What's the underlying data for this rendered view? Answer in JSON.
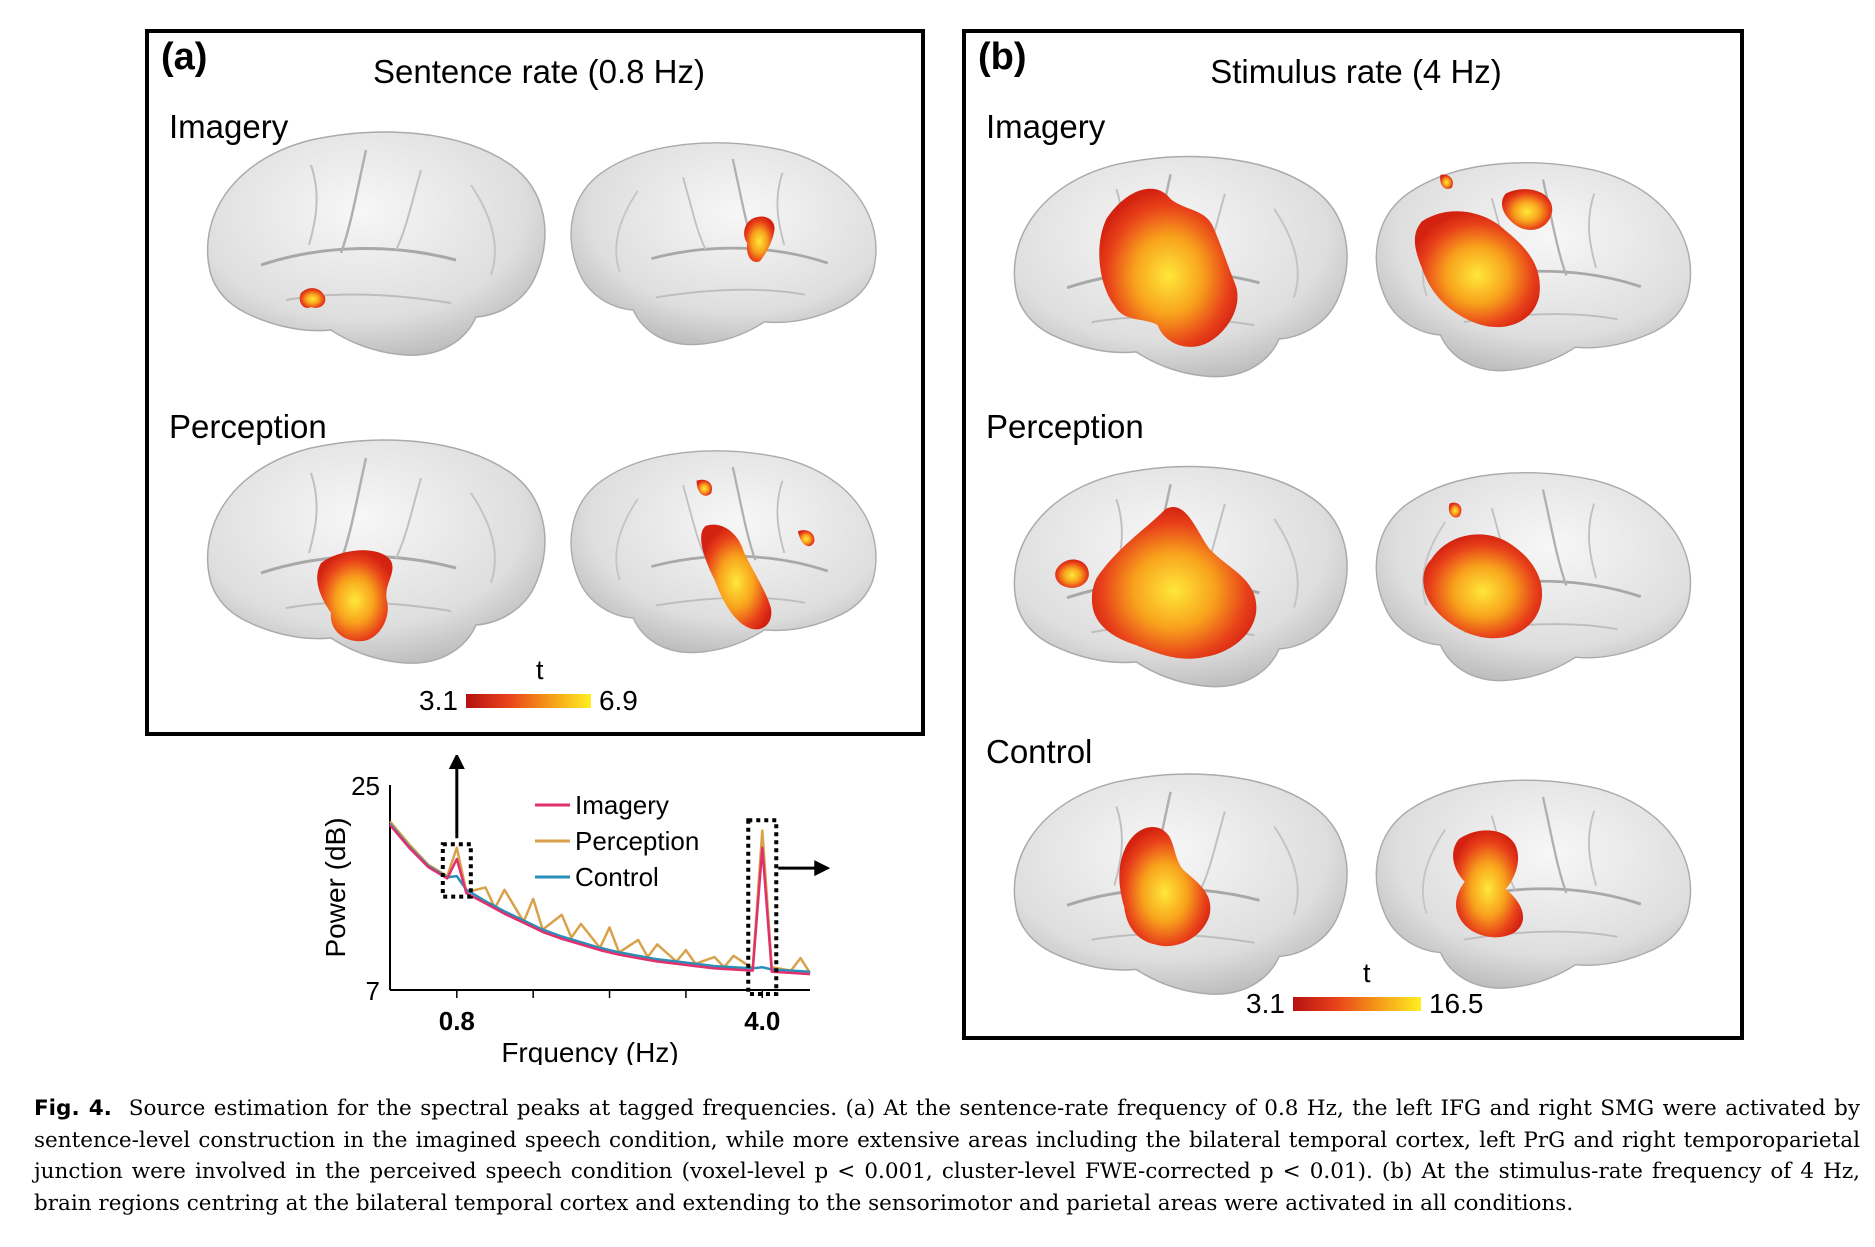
{
  "panel_a": {
    "label": "(a)",
    "title": "Sentence rate (0.8 Hz)",
    "rows": [
      "Imagery",
      "Perception"
    ],
    "colorbar": {
      "min": "3.1",
      "max": "6.9",
      "label": "t"
    }
  },
  "panel_b": {
    "label": "(b)",
    "title": "Stimulus rate (4 Hz)",
    "rows": [
      "Imagery",
      "Perception",
      "Control"
    ],
    "colorbar": {
      "min": "3.1",
      "max": "16.5",
      "label": "t"
    }
  },
  "colors": {
    "brain_fill": "#dcdcdc",
    "act_low": "#d42210",
    "act_high": "#ffe83a",
    "imagery": "#e0306e",
    "perception": "#d9a24a",
    "control": "#2a8fb8"
  },
  "chart_data": {
    "type": "line",
    "xlabel": "Frquency (Hz)",
    "ylabel": "Power (dB)",
    "ylim": [
      7,
      25
    ],
    "xlim": [
      0.1,
      4.5
    ],
    "x_ticks": [
      "0.8",
      "4.0"
    ],
    "y_ticks": [
      "25",
      "7"
    ],
    "legend_position": "top-right",
    "series": [
      {
        "name": "Imagery",
        "color": "#e0306e",
        "x": [
          0.1,
          0.3,
          0.5,
          0.7,
          0.8,
          0.9,
          1.1,
          1.3,
          1.5,
          1.7,
          1.9,
          2.1,
          2.3,
          2.5,
          2.7,
          2.9,
          3.1,
          3.3,
          3.5,
          3.7,
          3.9,
          4.0,
          4.1,
          4.3,
          4.5
        ],
        "y": [
          21.5,
          19.5,
          17.8,
          16.8,
          18.5,
          15.5,
          14.6,
          13.7,
          12.9,
          12.1,
          11.5,
          11.0,
          10.5,
          10.1,
          9.8,
          9.5,
          9.3,
          9.1,
          8.9,
          8.8,
          8.7,
          19.5,
          8.6,
          8.5,
          8.4
        ]
      },
      {
        "name": "Perception",
        "color": "#d9a24a",
        "x": [
          0.1,
          0.3,
          0.5,
          0.7,
          0.8,
          0.9,
          1.1,
          1.2,
          1.3,
          1.5,
          1.6,
          1.7,
          1.9,
          2.0,
          2.1,
          2.3,
          2.4,
          2.5,
          2.7,
          2.8,
          2.9,
          3.1,
          3.2,
          3.3,
          3.5,
          3.6,
          3.7,
          3.9,
          4.0,
          4.1,
          4.3,
          4.4,
          4.5
        ],
        "y": [
          21.8,
          19.8,
          18.0,
          17.0,
          19.5,
          15.6,
          16.0,
          14.2,
          15.8,
          13.0,
          15.0,
          12.3,
          13.6,
          11.6,
          12.8,
          10.7,
          12.5,
          10.3,
          11.4,
          9.9,
          11.0,
          9.5,
          10.5,
          9.3,
          9.9,
          9.0,
          10.0,
          8.9,
          21.0,
          9.0,
          8.7,
          9.8,
          8.5
        ]
      },
      {
        "name": "Control",
        "color": "#2a8fb8",
        "x": [
          0.1,
          0.3,
          0.5,
          0.7,
          0.8,
          0.9,
          1.1,
          1.3,
          1.5,
          1.7,
          1.9,
          2.1,
          2.3,
          2.5,
          2.7,
          2.9,
          3.1,
          3.3,
          3.5,
          3.7,
          3.9,
          4.0,
          4.1,
          4.3,
          4.5
        ],
        "y": [
          21.6,
          19.6,
          17.9,
          16.9,
          17.0,
          15.8,
          14.8,
          13.9,
          13.1,
          12.3,
          11.7,
          11.2,
          10.7,
          10.3,
          10.0,
          9.7,
          9.5,
          9.3,
          9.1,
          9.0,
          8.9,
          9.0,
          8.8,
          8.7,
          8.6
        ]
      }
    ]
  },
  "caption": {
    "label": "Fig. 4.",
    "text": "Source estimation for the spectral peaks at tagged frequencies. (a) At the sentence-rate frequency of 0.8 Hz, the left IFG and right SMG were activated by sentence-level construction in the imagined speech condition, while more extensive areas including the bilateral temporal cortex, left PrG and right temporoparietal junction were involved in the perceived speech condition (voxel-level p < 0.001, cluster-level FWE-corrected p < 0.01). (b) At the stimulus-rate frequency of 4 Hz, brain regions centring at the bilateral temporal cortex and extending to the sensorimotor and parietal areas were activated in all conditions."
  }
}
